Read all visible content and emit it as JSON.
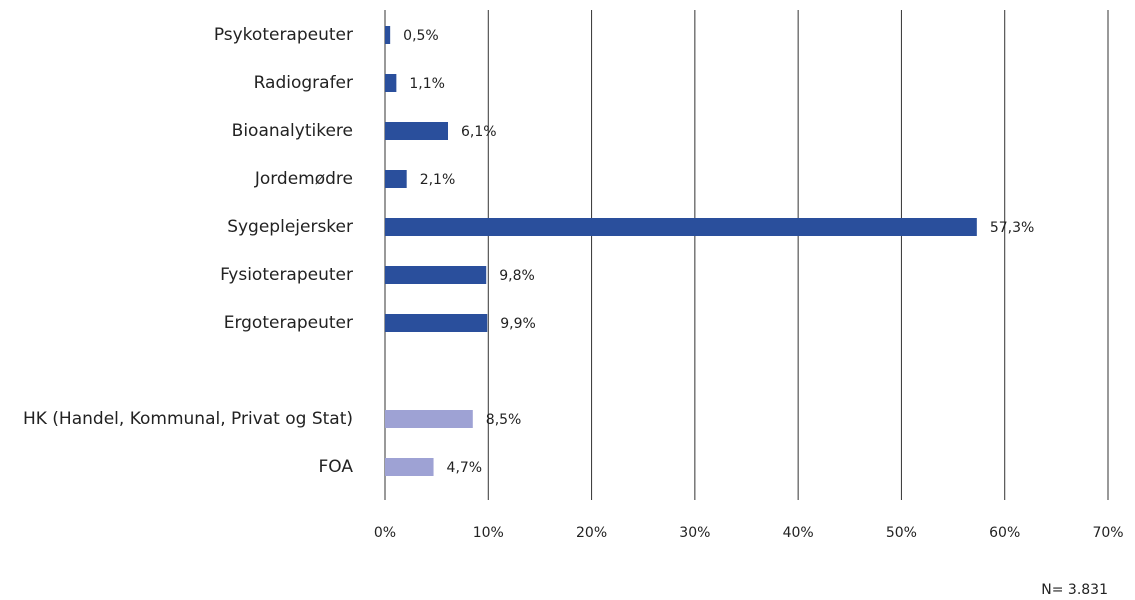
{
  "chart_data": {
    "type": "bar",
    "orientation": "horizontal",
    "categories": [
      "Psykoterapeuter",
      "Radiografer",
      "Bioanalytikere",
      "Jordemødre",
      "Sygeplejersker",
      "Fysioterapeuter",
      "Ergoterapeuter",
      null,
      "HK (Handel, Kommunal, Privat og Stat)",
      "FOA"
    ],
    "values": [
      0.5,
      1.1,
      6.1,
      2.1,
      57.3,
      9.8,
      9.9,
      null,
      8.5,
      4.7
    ],
    "value_labels": [
      "0,5%",
      "1,1%",
      "6,1%",
      "2,1%",
      "57,3%",
      "9,8%",
      "9,9%",
      null,
      "8,5%",
      "4,7%"
    ],
    "colors": [
      "#2a4f9c",
      "#2a4f9c",
      "#2a4f9c",
      "#2a4f9c",
      "#2a4f9c",
      "#2a4f9c",
      "#2a4f9c",
      null,
      "#9ea2d4",
      "#9ea2d4"
    ],
    "xlim": [
      0,
      70
    ],
    "xticks": [
      {
        "value": 0,
        "label": "0%"
      },
      {
        "value": 10,
        "label": "10%"
      },
      {
        "value": 20,
        "label": "20%"
      },
      {
        "value": 30,
        "label": "30%"
      },
      {
        "value": 40,
        "label": "40%"
      },
      {
        "value": 50,
        "label": "50%"
      },
      {
        "value": 60,
        "label": "60%"
      },
      {
        "value": 70,
        "label": "70%"
      }
    ],
    "grid": true,
    "annotation": "N= 3.831"
  }
}
